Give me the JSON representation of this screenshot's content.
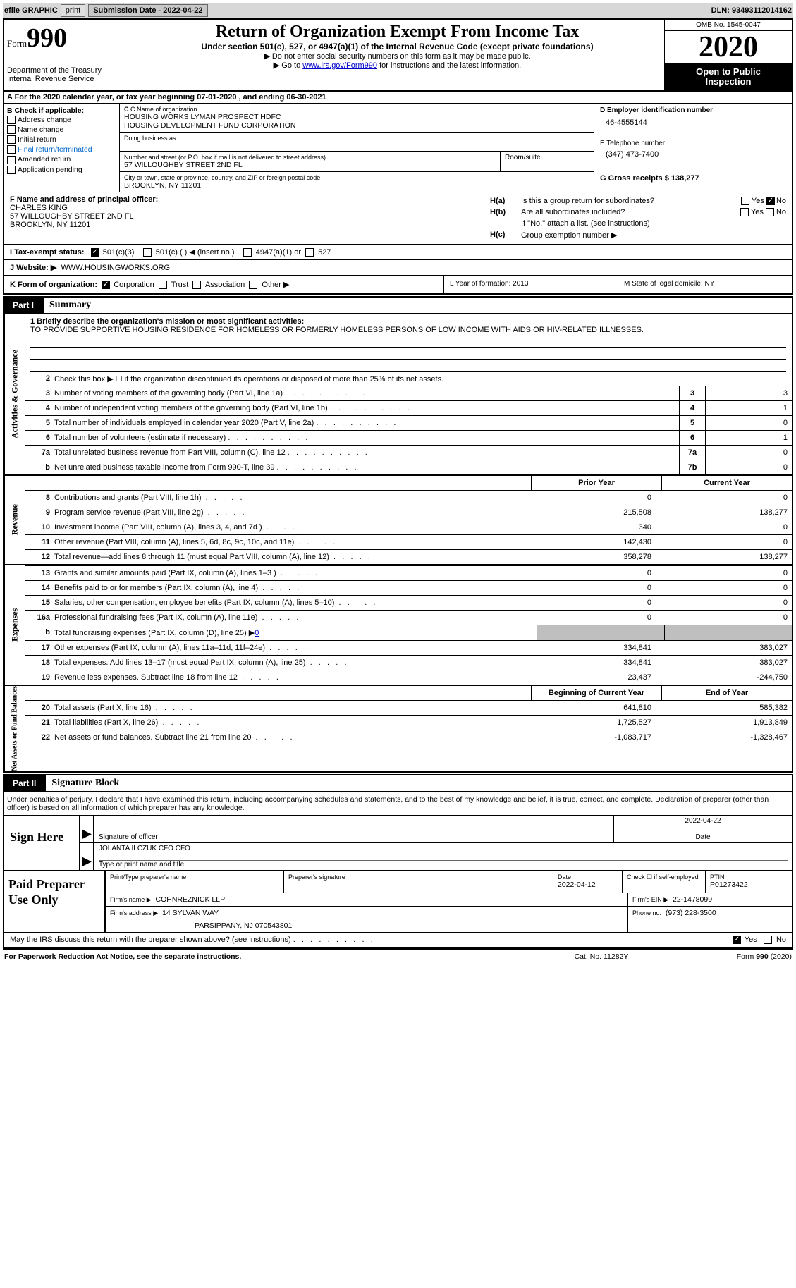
{
  "top_bar": {
    "efile_label": "efile GRAPHIC",
    "print_btn": "print",
    "submission_label": "Submission Date - 2022-04-22",
    "dln_label": "DLN: 93493112014162"
  },
  "header": {
    "form_label": "Form",
    "form_number": "990",
    "dept": "Department of the Treasury",
    "irs": "Internal Revenue Service",
    "title": "Return of Organization Exempt From Income Tax",
    "subtitle": "Under section 501(c), 527, or 4947(a)(1) of the Internal Revenue Code (except private foundations)",
    "note1_arrow": "▶",
    "note1": "Do not enter social security numbers on this form as it may be made public.",
    "note2_arrow": "▶",
    "note2_prefix": "Go to ",
    "note2_link": "www.irs.gov/Form990",
    "note2_suffix": " for instructions and the latest information.",
    "omb": "OMB No. 1545-0047",
    "year": "2020",
    "inspection1": "Open to Public",
    "inspection2": "Inspection"
  },
  "line_a": "A For the 2020 calendar year, or tax year beginning 07-01-2020   , and ending 06-30-2021",
  "section_b": {
    "label": "B Check if applicable:",
    "opts": [
      "Address change",
      "Name change",
      "Initial return",
      "Final return/terminated",
      "Amended return",
      "Application pending"
    ]
  },
  "section_c": {
    "name_label": "C Name of organization",
    "name1": "HOUSING WORKS LYMAN PROSPECT HDFC",
    "name2": "HOUSING DEVELOPMENT FUND CORPORATION",
    "dba_label": "Doing business as",
    "street_label": "Number and street (or P.O. box if mail is not delivered to street address)",
    "street": "57 WILLOUGHBY STREET 2ND FL",
    "room_label": "Room/suite",
    "city_label": "City or town, state or province, country, and ZIP or foreign postal code",
    "city": "BROOKLYN, NY  11201"
  },
  "section_d": {
    "label": "D Employer identification number",
    "value": "46-4555144"
  },
  "section_e": {
    "label": "E Telephone number",
    "value": "(347) 473-7400"
  },
  "section_g": {
    "label": "G Gross receipts $ 138,277"
  },
  "section_f": {
    "label": "F  Name and address of principal officer:",
    "name": "CHARLES KING",
    "addr1": "57 WILLOUGHBY STREET 2ND FL",
    "addr2": "BROOKLYN, NY  11201"
  },
  "section_h": {
    "ha_label": "H(a)",
    "ha_text": "Is this a group return for subordinates?",
    "hb_label": "H(b)",
    "hb_text": "Are all subordinates included?",
    "hb_note": "If \"No,\" attach a list. (see instructions)",
    "hc_label": "H(c)",
    "hc_text": "Group exemption number ▶",
    "yes": "Yes",
    "no": "No"
  },
  "section_i": {
    "label": "I     Tax-exempt status:",
    "o1": "501(c)(3)",
    "o2": "501(c) (  ) ◀ (insert no.)",
    "o3": "4947(a)(1) or",
    "o4": "527"
  },
  "section_j": {
    "label": "J    Website: ▶",
    "value": "WWW.HOUSINGWORKS.ORG"
  },
  "section_k": {
    "label": "K Form of organization:",
    "o1": "Corporation",
    "o2": "Trust",
    "o3": "Association",
    "o4": "Other ▶"
  },
  "section_l": "L Year of formation: 2013",
  "section_m": "M State of legal domicile: NY",
  "part1": {
    "num": "Part I",
    "title": "Summary",
    "vert1": "Activities & Governance",
    "vert2": "Revenue",
    "vert3": "Expenses",
    "vert4": "Net Assets or Fund Balances",
    "q1_label": "1  Briefly describe the organization's mission or most significant activities:",
    "q1_text": "TO PROVIDE SUPPORTIVE HOUSING RESIDENCE FOR HOMELESS OR FORMERLY HOMELESS PERSONS OF LOW INCOME WITH AIDS OR HIV-RELATED ILLNESSES.",
    "q2": "Check this box ▶ ☐  if the organization discontinued its operations or disposed of more than 25% of its net assets.",
    "gov_rows": [
      {
        "n": "3",
        "t": "Number of voting members of the governing body (Part VI, line 1a)",
        "c": "3",
        "v": "3"
      },
      {
        "n": "4",
        "t": "Number of independent voting members of the governing body (Part VI, line 1b)",
        "c": "4",
        "v": "1"
      },
      {
        "n": "5",
        "t": "Total number of individuals employed in calendar year 2020 (Part V, line 2a)",
        "c": "5",
        "v": "0"
      },
      {
        "n": "6",
        "t": "Total number of volunteers (estimate if necessary)",
        "c": "6",
        "v": "1"
      },
      {
        "n": "7a",
        "t": "Total unrelated business revenue from Part VIII, column (C), line 12",
        "c": "7a",
        "v": "0"
      },
      {
        "n": " b",
        "t": "Net unrelated business taxable income from Form 990-T, line 39",
        "c": "7b",
        "v": "0"
      }
    ],
    "prior_year": "Prior Year",
    "current_year": "Current Year",
    "rev_rows": [
      {
        "n": "8",
        "t": "Contributions and grants (Part VIII, line 1h)",
        "p": "0",
        "c": "0"
      },
      {
        "n": "9",
        "t": "Program service revenue (Part VIII, line 2g)",
        "p": "215,508",
        "c": "138,277"
      },
      {
        "n": "10",
        "t": "Investment income (Part VIII, column (A), lines 3, 4, and 7d )",
        "p": "340",
        "c": "0"
      },
      {
        "n": "11",
        "t": "Other revenue (Part VIII, column (A), lines 5, 6d, 8c, 9c, 10c, and 11e)",
        "p": "142,430",
        "c": "0"
      },
      {
        "n": "12",
        "t": "Total revenue—add lines 8 through 11 (must equal Part VIII, column (A), line 12)",
        "p": "358,278",
        "c": "138,277"
      }
    ],
    "exp_rows": [
      {
        "n": "13",
        "t": "Grants and similar amounts paid (Part IX, column (A), lines 1–3 )",
        "p": "0",
        "c": "0"
      },
      {
        "n": "14",
        "t": "Benefits paid to or for members (Part IX, column (A), line 4)",
        "p": "0",
        "c": "0"
      },
      {
        "n": "15",
        "t": "Salaries, other compensation, employee benefits (Part IX, column (A), lines 5–10)",
        "p": "0",
        "c": "0"
      },
      {
        "n": "16a",
        "t": "Professional fundraising fees (Part IX, column (A), line 11e)",
        "p": "0",
        "c": "0"
      }
    ],
    "line16b_n": "b",
    "line16b_t": "Total fundraising expenses (Part IX, column (D), line 25) ▶",
    "line16b_v": "0",
    "exp_rows2": [
      {
        "n": "17",
        "t": "Other expenses (Part IX, column (A), lines 11a–11d, 11f–24e)",
        "p": "334,841",
        "c": "383,027"
      },
      {
        "n": "18",
        "t": "Total expenses. Add lines 13–17 (must equal Part IX, column (A), line 25)",
        "p": "334,841",
        "c": "383,027"
      },
      {
        "n": "19",
        "t": "Revenue less expenses. Subtract line 18 from line 12",
        "p": "23,437",
        "c": "-244,750"
      }
    ],
    "begin_year": "Beginning of Current Year",
    "end_year": "End of Year",
    "net_rows": [
      {
        "n": "20",
        "t": "Total assets (Part X, line 16)",
        "p": "641,810",
        "c": "585,382"
      },
      {
        "n": "21",
        "t": "Total liabilities (Part X, line 26)",
        "p": "1,725,527",
        "c": "1,913,849"
      },
      {
        "n": "22",
        "t": "Net assets or fund balances. Subtract line 21 from line 20",
        "p": "-1,083,717",
        "c": "-1,328,467"
      }
    ]
  },
  "part2": {
    "num": "Part II",
    "title": "Signature Block",
    "intro": "Under penalties of perjury, I declare that I have examined this return, including accompanying schedules and statements, and to the best of my knowledge and belief, it is true, correct, and complete. Declaration of preparer (other than officer) is based on all information of which preparer has any knowledge.",
    "sign_here": "Sign Here",
    "sig_officer_label": "Signature of officer",
    "sig_date_label": "Date",
    "sig_date_val": "2022-04-22",
    "officer_name": "JOLANTA ILCZUK CFO  CFO",
    "officer_type_label": "Type or print name and title",
    "paid_label": "Paid Preparer Use Only",
    "prep_name_label": "Print/Type preparer's name",
    "prep_sig_label": "Preparer's signature",
    "prep_date_label": "Date",
    "prep_date_val": "2022-04-12",
    "prep_check_label": "Check ☐ if self-employed",
    "ptin_label": "PTIN",
    "ptin_val": "P01273422",
    "firm_name_label": "Firm's name    ▶",
    "firm_name": "COHNREZNICK LLP",
    "firm_ein_label": "Firm's EIN ▶",
    "firm_ein": "22-1478099",
    "firm_addr_label": "Firm's address ▶",
    "firm_addr1": "14 SYLVAN WAY",
    "firm_addr2": "PARSIPPANY, NJ  070543801",
    "phone_label": "Phone no.",
    "phone_val": "(973) 228-3500",
    "discuss": "May the IRS discuss this return with the preparer shown above? (see instructions)",
    "discuss_yes": "Yes",
    "discuss_no": "No"
  },
  "footer": {
    "left": "For Paperwork Reduction Act Notice, see the separate instructions.",
    "mid": "Cat. No. 11282Y",
    "right": "Form 990 (2020)"
  }
}
